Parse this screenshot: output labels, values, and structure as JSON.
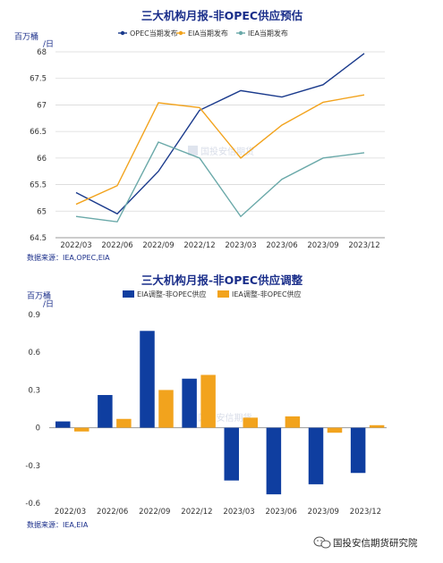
{
  "chart_data": [
    {
      "type": "line",
      "title": "三大机构月报-非OPEC供应预估",
      "ylabel": "百万桶/日",
      "ylim": [
        64.5,
        68
      ],
      "yticks": [
        "64.5",
        "65",
        "65.5",
        "66",
        "66.5",
        "67",
        "67.5",
        "68"
      ],
      "categories": [
        "2022/03",
        "2022/06",
        "2022/09",
        "2022/12",
        "2023/03",
        "2023/06",
        "2023/09",
        "2023/12"
      ],
      "grid": true,
      "legend_position": "top",
      "source": "数据来源：IEA,OPEC,EIA",
      "series": [
        {
          "name": "OPEC当期发布",
          "color": "#1a3a8c",
          "values": [
            65.35,
            64.95,
            65.75,
            66.9,
            67.27,
            67.15,
            67.38,
            67.97
          ]
        },
        {
          "name": "EIA当期发布",
          "color": "#f2a31d",
          "values": [
            65.13,
            65.48,
            67.04,
            66.95,
            66.0,
            66.62,
            67.05,
            67.19
          ]
        },
        {
          "name": "IEA当期发布",
          "color": "#6aa9a9",
          "values": [
            64.9,
            64.8,
            66.3,
            66.0,
            64.9,
            65.6,
            66.0,
            66.1
          ]
        }
      ]
    },
    {
      "type": "bar",
      "title": "三大机构月报-非OPEC供应调整",
      "ylabel": "百万桶/日",
      "ylim": [
        -0.6,
        0.9
      ],
      "yticks": [
        "-0.6",
        "-0.3",
        "0",
        "0.3",
        "0.6",
        "0.9"
      ],
      "categories": [
        "2022/03",
        "2022/06",
        "2022/09",
        "2022/12",
        "2023/03",
        "2023/06",
        "2023/09",
        "2023/12"
      ],
      "legend_position": "top",
      "source": "数据来源：IEA,EIA",
      "series": [
        {
          "name": "EIA调整-非OPEC供应",
          "color": "#0f3ea0",
          "values": [
            0.05,
            0.26,
            0.77,
            0.39,
            -0.42,
            -0.53,
            -0.45,
            -0.36
          ]
        },
        {
          "name": "IEA调整-非OPEC供应",
          "color": "#f2a31d",
          "values": [
            -0.03,
            0.07,
            0.3,
            0.42,
            0.08,
            0.09,
            -0.04,
            0.02
          ]
        }
      ]
    }
  ],
  "watermark": {
    "text": "国投安信期货"
  },
  "footer": {
    "brand": "国投安信期货研究院"
  }
}
